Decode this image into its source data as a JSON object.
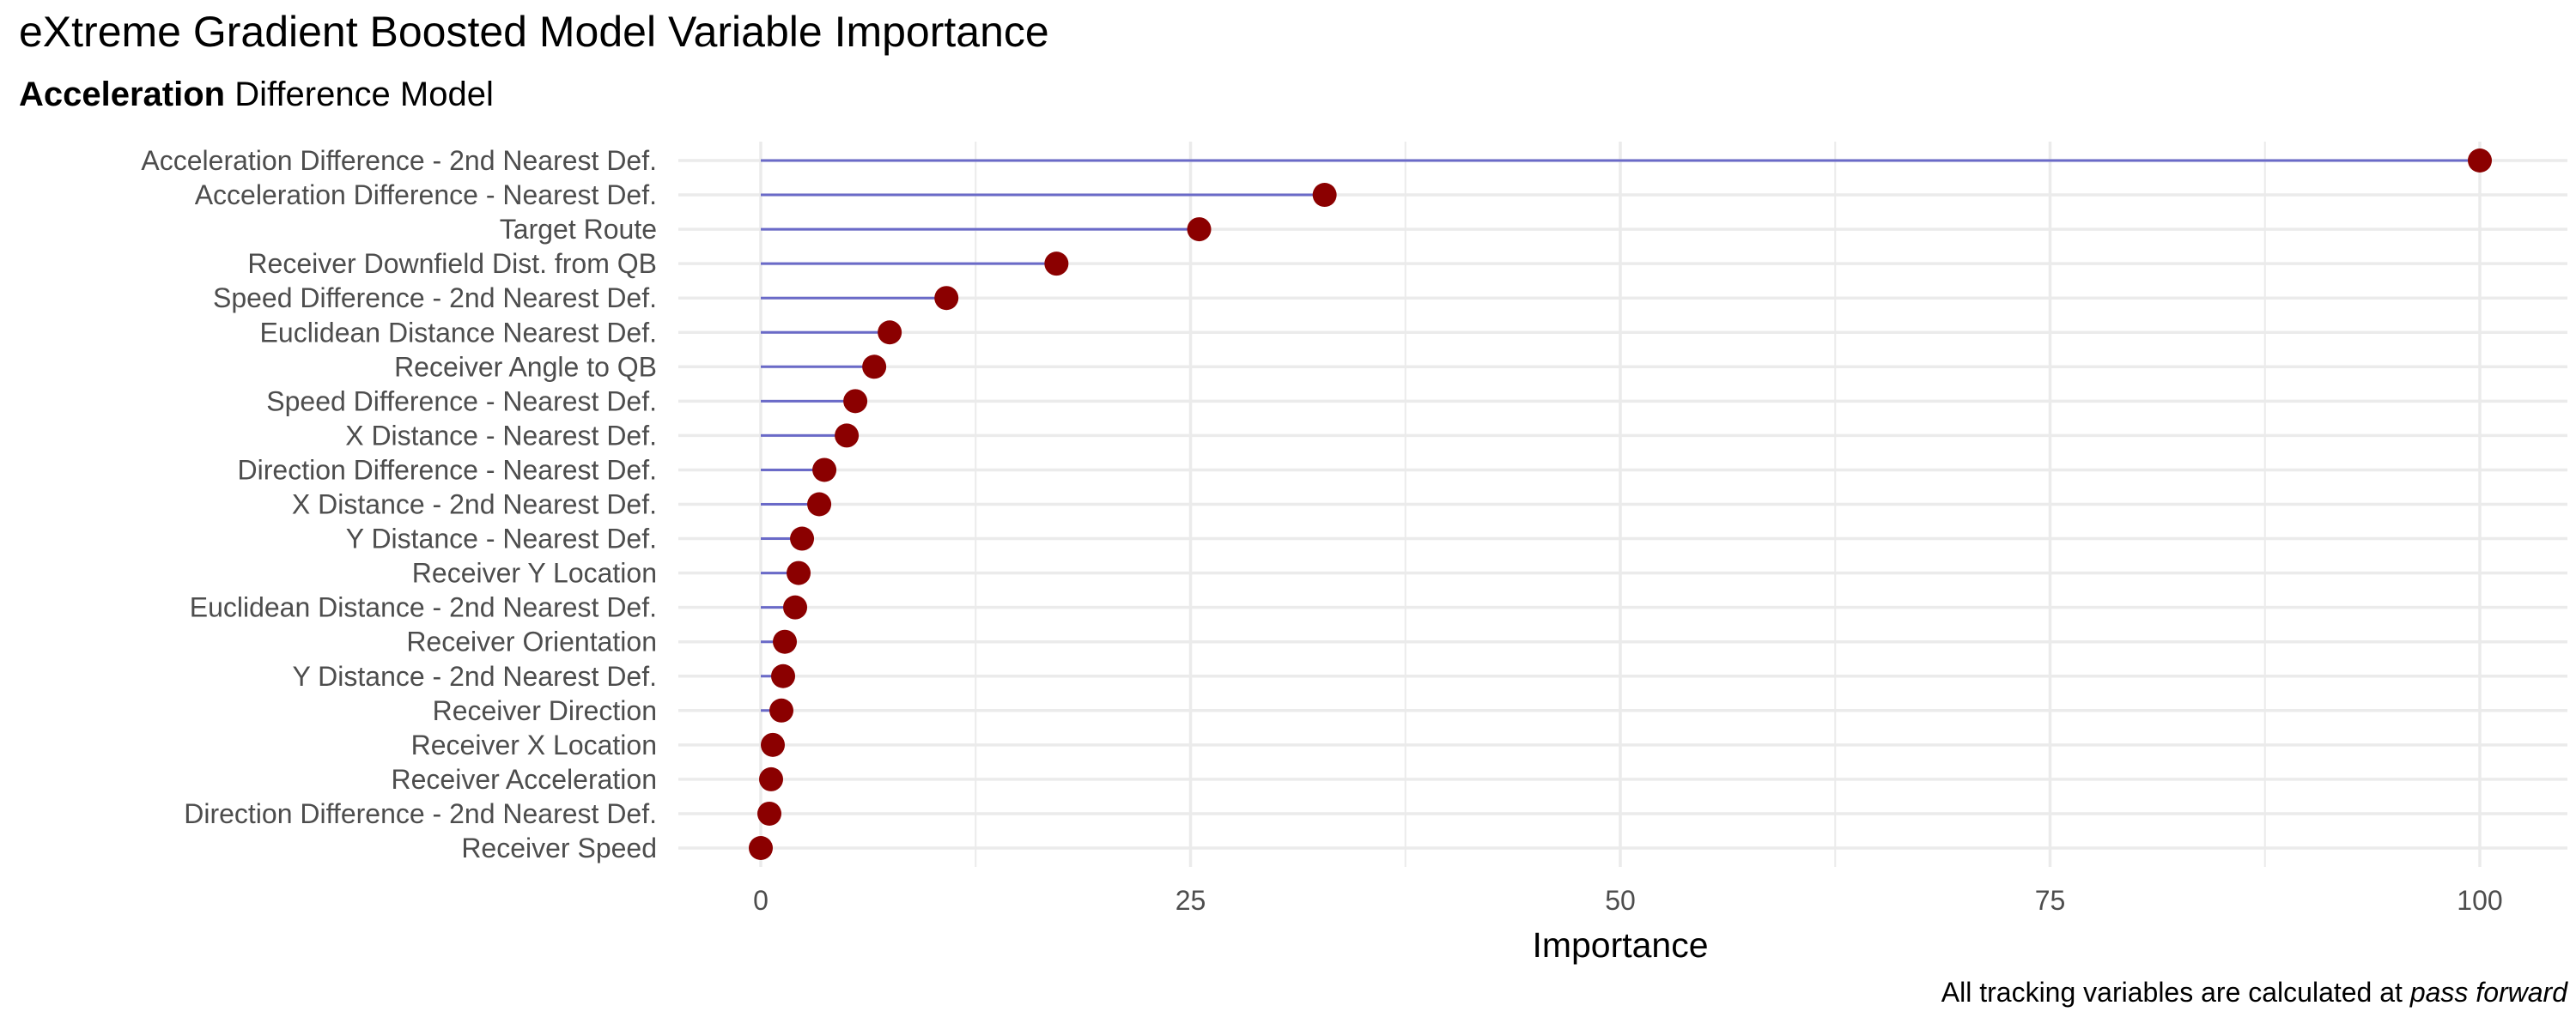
{
  "title": "eXtreme Gradient Boosted Model Variable Importance",
  "subtitle": {
    "bold": "Acceleration",
    "rest": " Difference Model"
  },
  "caption": {
    "text": "All tracking variables are calculated at ",
    "emphasis": "pass forward"
  },
  "colors": {
    "point": "#8b0000",
    "segment": "#6a6ac8",
    "grid": "#ebebeb",
    "tick_text": "#4d4d4d",
    "axis_title": "#000000"
  },
  "chart_data": {
    "type": "lollipop",
    "title": "eXtreme Gradient Boosted Model Variable Importance",
    "subtitle": "Acceleration Difference Model",
    "xlabel": "Importance",
    "ylabel": "",
    "xlim": [
      0,
      100
    ],
    "xticks": [
      0,
      25,
      50,
      75,
      100
    ],
    "grid": true,
    "categories": [
      "Acceleration Difference - 2nd Nearest Def.",
      "Acceleration Difference - Nearest Def.",
      "Target Route",
      "Receiver Downfield Dist. from QB",
      "Speed Difference - 2nd Nearest Def.",
      "Euclidean Distance Nearest Def.",
      "Receiver Angle to QB",
      "Speed Difference - Nearest Def.",
      "X Distance - Nearest Def.",
      "Direction Difference - Nearest Def.",
      "X Distance - 2nd Nearest Def.",
      "Y Distance - Nearest Def.",
      "Receiver Y Location",
      "Euclidean Distance - 2nd Nearest Def.",
      "Receiver Orientation",
      "Y Distance - 2nd Nearest Def.",
      "Receiver Direction",
      "Receiver X Location",
      "Receiver Acceleration",
      "Direction Difference - 2nd Nearest Def.",
      "Receiver Speed"
    ],
    "values": [
      100,
      32.8,
      25.5,
      17.2,
      10.8,
      7.5,
      6.6,
      5.5,
      5.0,
      3.7,
      3.4,
      2.4,
      2.2,
      2.0,
      1.4,
      1.3,
      1.2,
      0.7,
      0.6,
      0.5,
      0.0
    ],
    "caption": "All tracking variables are calculated at pass forward"
  }
}
